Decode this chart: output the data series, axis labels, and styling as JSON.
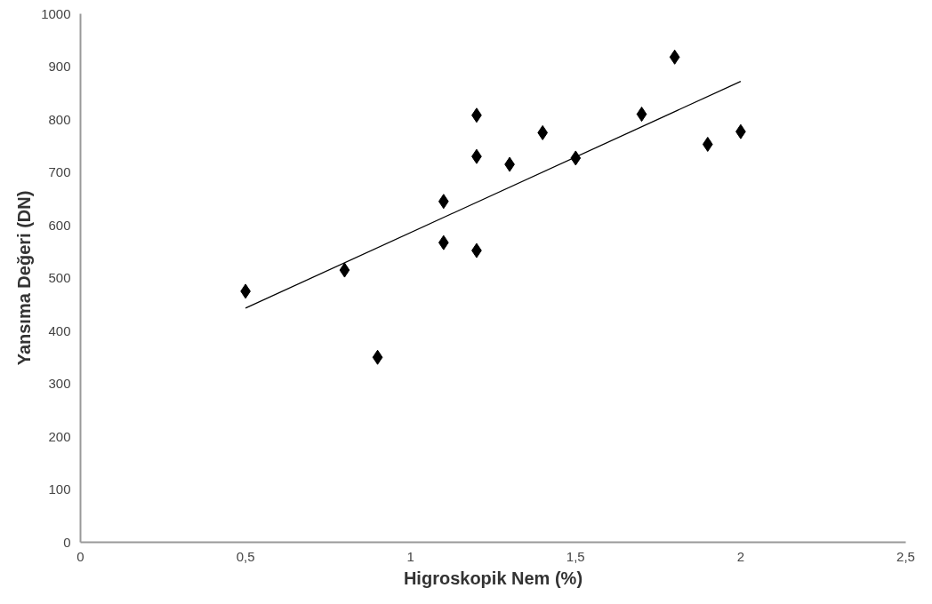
{
  "chart_data": {
    "type": "scatter",
    "xlabel": "Higroskopik Nem (%)",
    "ylabel": "Yansıma Değeri (DN)",
    "xlim": [
      0,
      2.5
    ],
    "xticks": [
      0,
      {
        "value": 0.5,
        "label": "0,5"
      },
      1,
      {
        "value": 1.5,
        "label": "1,5"
      },
      2,
      {
        "value": 2.5,
        "label": "2,5"
      }
    ],
    "ylim": [
      0,
      1000
    ],
    "yticks": [
      0,
      100,
      200,
      300,
      400,
      500,
      600,
      700,
      800,
      900,
      1000
    ],
    "grid": false,
    "series": [
      {
        "marker": "diamond",
        "color": "#000000",
        "x": [
          0.5,
          0.8,
          0.9,
          1.1,
          1.1,
          1.2,
          1.2,
          1.2,
          1.3,
          1.4,
          1.5,
          1.7,
          1.8,
          1.9,
          2.0
        ],
        "values": [
          475,
          515,
          350,
          645,
          567,
          808,
          730,
          552,
          715,
          775,
          727,
          810,
          918,
          753,
          777
        ]
      },
      {
        "type": "line",
        "marker": "none",
        "color": "#000000",
        "x": [
          0.5,
          2.0
        ],
        "values": [
          443,
          872
        ]
      }
    ]
  }
}
